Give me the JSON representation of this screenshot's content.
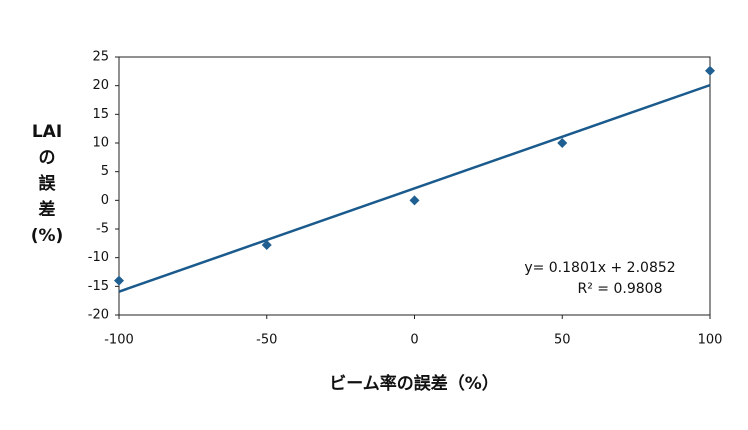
{
  "chart_data": {
    "type": "scatter",
    "x": [
      -100,
      -50,
      0,
      50,
      100
    ],
    "values": [
      -14,
      -7.8,
      0,
      10,
      22.6
    ],
    "color": "#1f5f91",
    "trendline": {
      "slope": 0.1801,
      "intercept": 2.0852,
      "color": "#1a5a8c",
      "label": "y= 0.1801x + 2.0852",
      "r2_label": "R² = 0.9808"
    },
    "xlabel": "ビーム率の誤差（%）",
    "ylabel": [
      "LAI",
      "の",
      "誤",
      "差",
      "(%)"
    ],
    "xlim": [
      -100,
      100
    ],
    "xticks": [
      -100,
      -50,
      0,
      50,
      100
    ],
    "ylim": [
      -20,
      25
    ],
    "yticks": [
      -20,
      -15,
      -10,
      -5,
      0,
      5,
      10,
      15,
      20,
      25
    ],
    "grid": false
  }
}
